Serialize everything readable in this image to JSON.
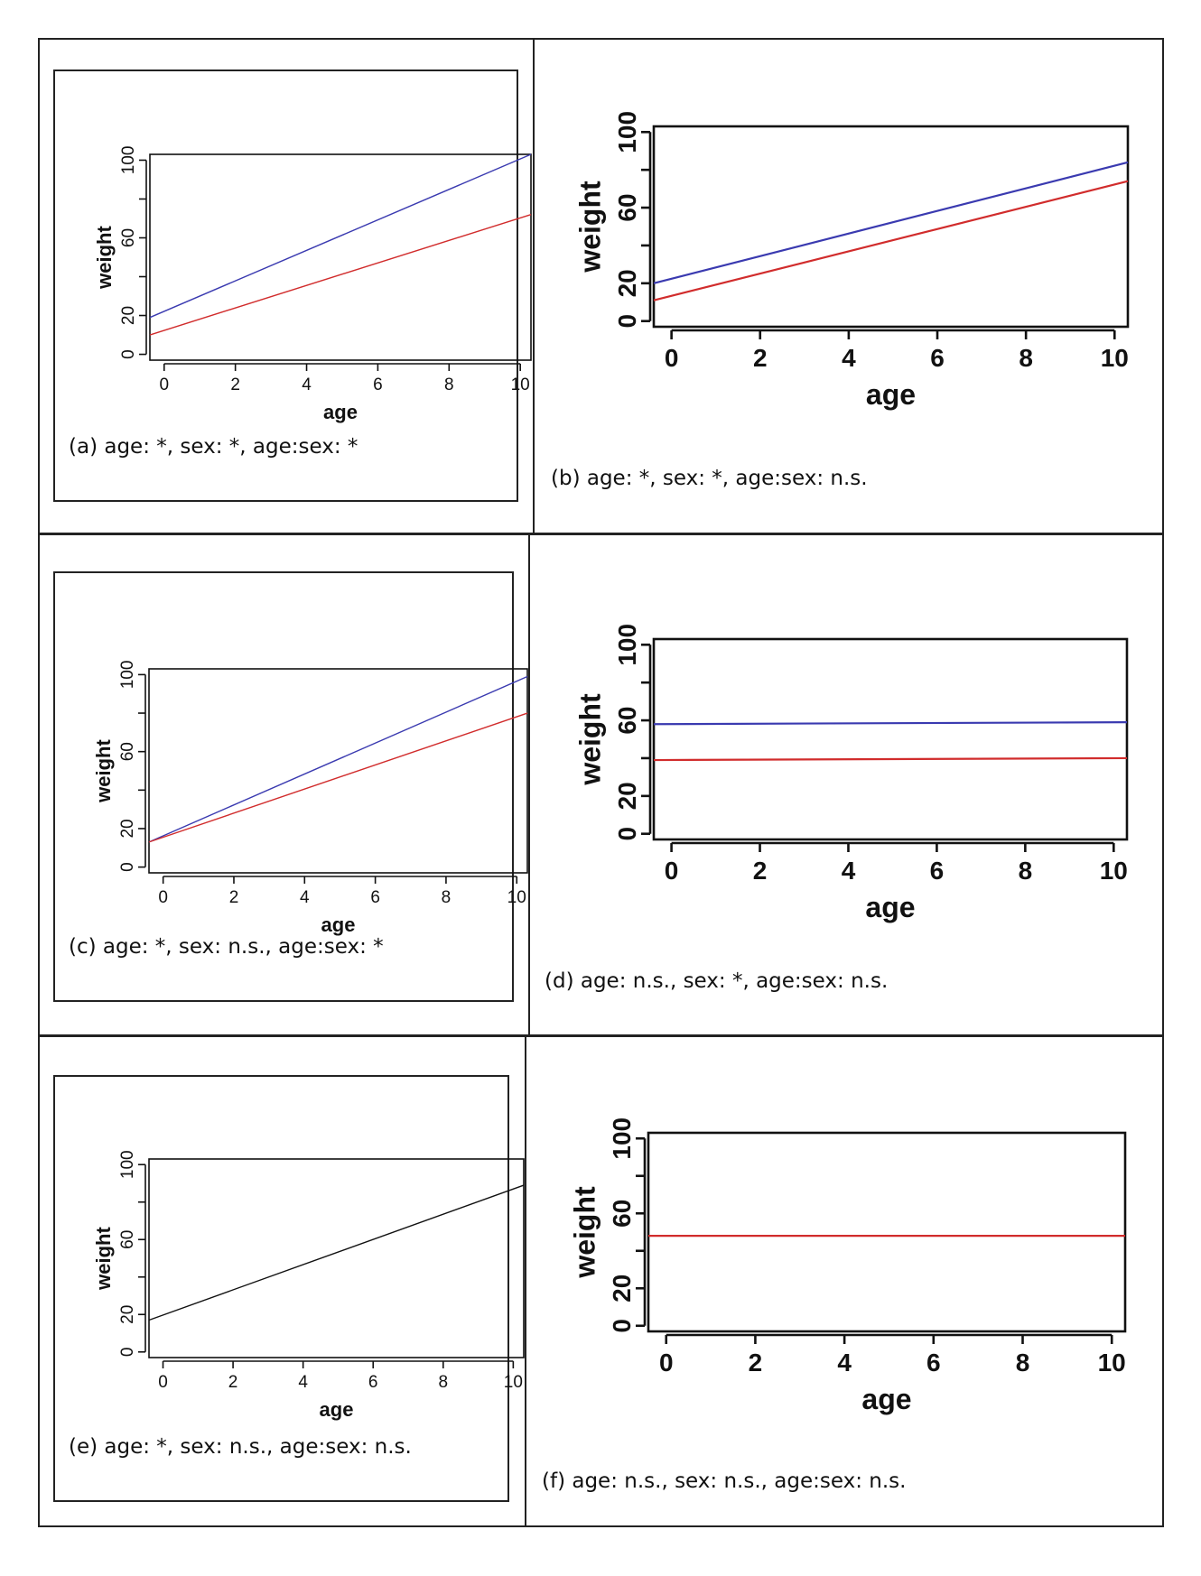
{
  "chart_data": [
    {
      "type": "line",
      "panel": "a",
      "xlabel": "age",
      "ylabel": "weight",
      "xlim": [
        -0.4,
        10.3
      ],
      "ylim": [
        -3,
        103
      ],
      "xticks": [
        "0",
        "2",
        "4",
        "6",
        "8",
        "10"
      ],
      "yticks": [
        "0",
        "20",
        "60",
        "100"
      ],
      "series": [
        {
          "name": "blue",
          "color": "#3a3ab0",
          "x": [
            -0.4,
            10.3
          ],
          "y": [
            19,
            103
          ]
        },
        {
          "name": "red",
          "color": "#d12c2c",
          "x": [
            -0.4,
            10.3
          ],
          "y": [
            10,
            72
          ]
        }
      ],
      "caption": "(a) age: *, sex: *, age:sex: *"
    },
    {
      "type": "line",
      "panel": "b",
      "xlabel": "age",
      "ylabel": "weight",
      "xlim": [
        -0.4,
        10.3
      ],
      "ylim": [
        -3,
        103
      ],
      "xticks": [
        "0",
        "2",
        "4",
        "6",
        "8",
        "10"
      ],
      "yticks": [
        "0",
        "20",
        "60",
        "100"
      ],
      "series": [
        {
          "name": "blue",
          "color": "#3a3ab0",
          "x": [
            -0.4,
            10.3
          ],
          "y": [
            20,
            84
          ]
        },
        {
          "name": "red",
          "color": "#d12c2c",
          "x": [
            -0.4,
            10.3
          ],
          "y": [
            11,
            74
          ]
        }
      ],
      "caption": "(b) age: *, sex: *, age:sex: n.s."
    },
    {
      "type": "line",
      "panel": "c",
      "xlabel": "age",
      "ylabel": "weight",
      "xlim": [
        -0.4,
        10.3
      ],
      "ylim": [
        -3,
        103
      ],
      "xticks": [
        "0",
        "2",
        "4",
        "6",
        "8",
        "10"
      ],
      "yticks": [
        "0",
        "20",
        "60",
        "100"
      ],
      "series": [
        {
          "name": "blue",
          "color": "#3a3ab0",
          "x": [
            -0.4,
            10.3
          ],
          "y": [
            13,
            99
          ]
        },
        {
          "name": "red",
          "color": "#d12c2c",
          "x": [
            -0.4,
            10.3
          ],
          "y": [
            13,
            80
          ]
        }
      ],
      "caption": "(c) age: *, sex: n.s., age:sex: *"
    },
    {
      "type": "line",
      "panel": "d",
      "xlabel": "age",
      "ylabel": "weight",
      "xlim": [
        -0.4,
        10.3
      ],
      "ylim": [
        -3,
        103
      ],
      "xticks": [
        "0",
        "2",
        "4",
        "6",
        "8",
        "10"
      ],
      "yticks": [
        "0",
        "20",
        "60",
        "100"
      ],
      "series": [
        {
          "name": "blue",
          "color": "#3a3ab0",
          "x": [
            -0.4,
            10.3
          ],
          "y": [
            58,
            59
          ]
        },
        {
          "name": "red",
          "color": "#d12c2c",
          "x": [
            -0.4,
            10.3
          ],
          "y": [
            39,
            40
          ]
        }
      ],
      "caption": "(d) age: n.s., sex: *, age:sex: n.s."
    },
    {
      "type": "line",
      "panel": "e",
      "xlabel": "age",
      "ylabel": "weight",
      "xlim": [
        -0.4,
        10.3
      ],
      "ylim": [
        -3,
        103
      ],
      "xticks": [
        "0",
        "2",
        "4",
        "6",
        "8",
        "10"
      ],
      "yticks": [
        "0",
        "20",
        "60",
        "100"
      ],
      "series": [
        {
          "name": "black",
          "color": "#111111",
          "x": [
            -0.4,
            10.3
          ],
          "y": [
            17,
            89
          ]
        }
      ],
      "caption": "(e) age: *, sex: n.s., age:sex: n.s."
    },
    {
      "type": "line",
      "panel": "f",
      "xlabel": "age",
      "ylabel": "weight",
      "xlim": [
        -0.4,
        10.3
      ],
      "ylim": [
        -3,
        103
      ],
      "xticks": [
        "0",
        "2",
        "4",
        "6",
        "8",
        "10"
      ],
      "yticks": [
        "0",
        "20",
        "60",
        "100"
      ],
      "series": [
        {
          "name": "red",
          "color": "#d12c2c",
          "x": [
            -0.4,
            10.3
          ],
          "y": [
            48,
            48
          ]
        }
      ],
      "caption": "(f) age: n.s., sex: n.s., age:sex: n.s."
    }
  ]
}
